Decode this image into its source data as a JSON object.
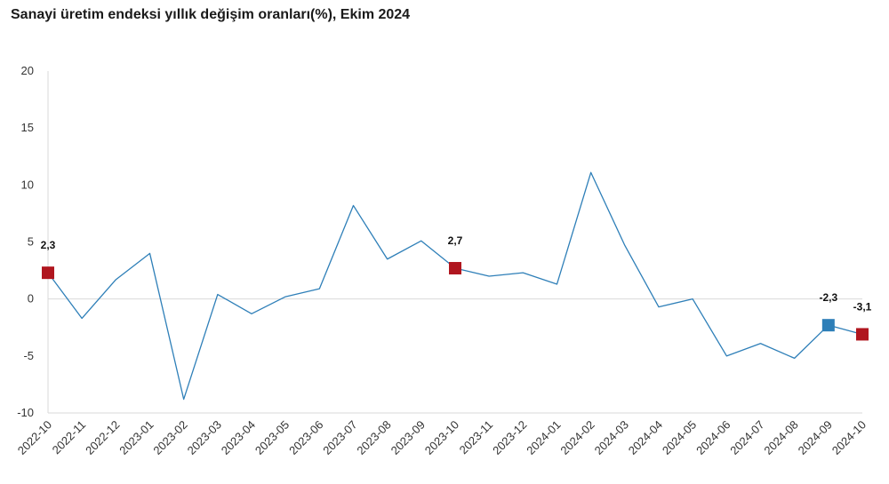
{
  "chart_data": {
    "type": "line",
    "title": "Sanayi üretim endeksi yıllık değişim oranları(%), Ekim 2024",
    "xlabel": "",
    "ylabel": "",
    "ylim": [
      -10,
      20
    ],
    "yticks": [
      20,
      15,
      10,
      5,
      0,
      -5,
      -10
    ],
    "grid": false,
    "categories": [
      "2022-10",
      "2022-11",
      "2022-12",
      "2023-01",
      "2023-02",
      "2023-03",
      "2023-04",
      "2023-05",
      "2023-06",
      "2023-07",
      "2023-08",
      "2023-09",
      "2023-10",
      "2023-11",
      "2023-12",
      "2024-01",
      "2024-02",
      "2024-03",
      "2024-04",
      "2024-05",
      "2024-06",
      "2024-07",
      "2024-08",
      "2024-09",
      "2024-10"
    ],
    "series": [
      {
        "values": [
          2.3,
          -1.7,
          1.7,
          4.0,
          -8.8,
          0.4,
          -1.3,
          0.2,
          0.9,
          8.2,
          3.5,
          5.1,
          2.7,
          2.0,
          2.3,
          1.3,
          11.1,
          4.7,
          -0.7,
          0.0,
          -5.0,
          -3.9,
          -5.2,
          -2.3,
          -3.1
        ],
        "color": "#2e7fb8"
      }
    ],
    "markers": [
      {
        "index": 0,
        "label": "2,3",
        "color": "#b0161f"
      },
      {
        "index": 12,
        "label": "2,7",
        "color": "#b0161f"
      },
      {
        "index": 23,
        "label": "-2,3",
        "color": "#2e7fb8"
      },
      {
        "index": 24,
        "label": "-3,1",
        "color": "#b0161f"
      }
    ]
  }
}
